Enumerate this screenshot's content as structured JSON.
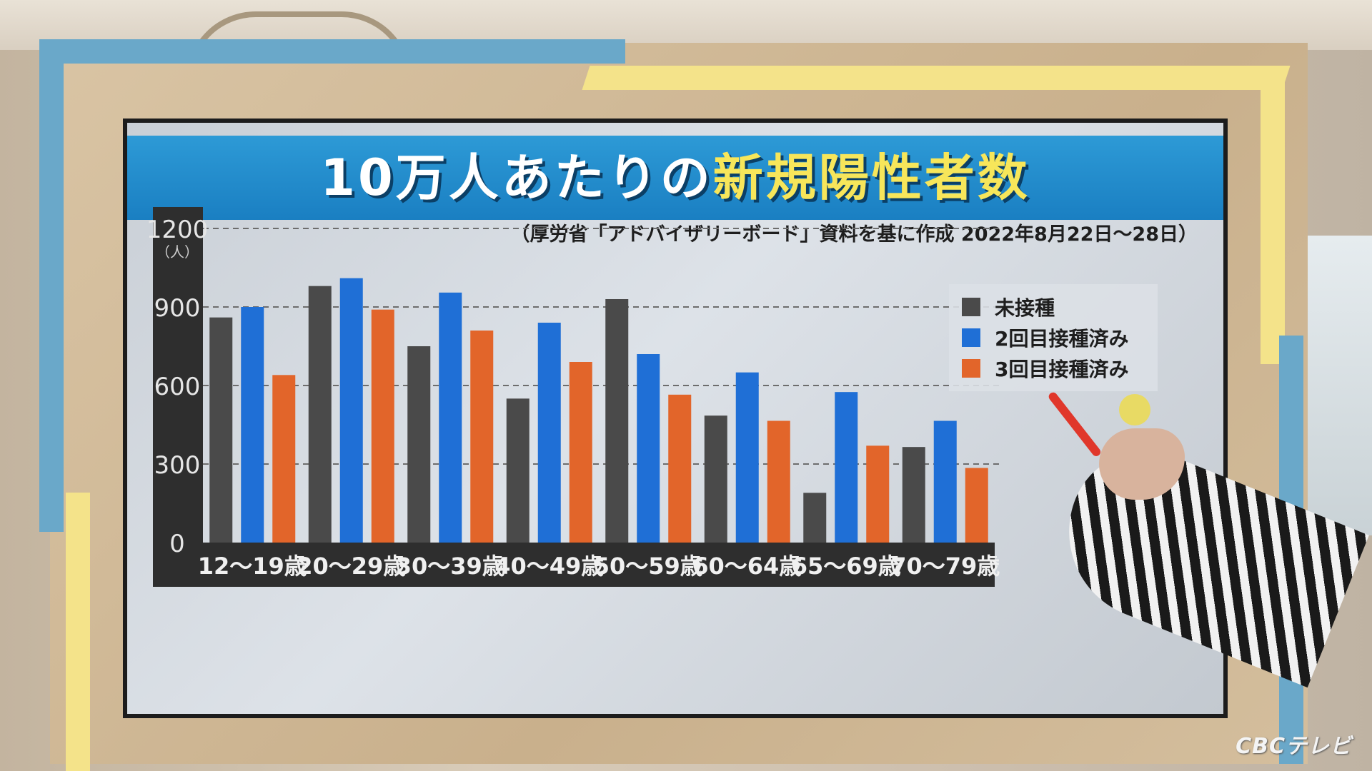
{
  "title_part1": "10万人あたりの",
  "title_part2": "新規陽性者数",
  "subtitle": "（厚労省「アドバイザリーボード」資料を基に作成 2022年8月22日〜28日）",
  "logo": "CBCテレビ",
  "chart_data": {
    "type": "bar",
    "categories": [
      "12〜19歳",
      "20〜29歳",
      "30〜39歳",
      "40〜49歳",
      "50〜59歳",
      "60〜64歳",
      "65〜69歳",
      "70〜79歳"
    ],
    "series": [
      {
        "name": "未接種",
        "color": "#4a4a4a",
        "values": [
          860,
          980,
          750,
          550,
          930,
          485,
          190,
          365
        ]
      },
      {
        "name": "2回目接種済み",
        "color": "#1f6fd6",
        "values": [
          900,
          1010,
          955,
          840,
          720,
          650,
          575,
          465
        ]
      },
      {
        "name": "3回目接種済み",
        "color": "#e2652a",
        "values": [
          640,
          890,
          810,
          690,
          565,
          465,
          370,
          285
        ]
      }
    ],
    "yticks": [
      "1200",
      "900",
      "600",
      "300",
      "0"
    ],
    "yunit": "（人）",
    "ylim": [
      0,
      1200
    ],
    "grid": true,
    "legend_position": "top-right"
  },
  "colors": {
    "title_bar": "#1f88cc",
    "title_highlight": "#f7e65a"
  }
}
